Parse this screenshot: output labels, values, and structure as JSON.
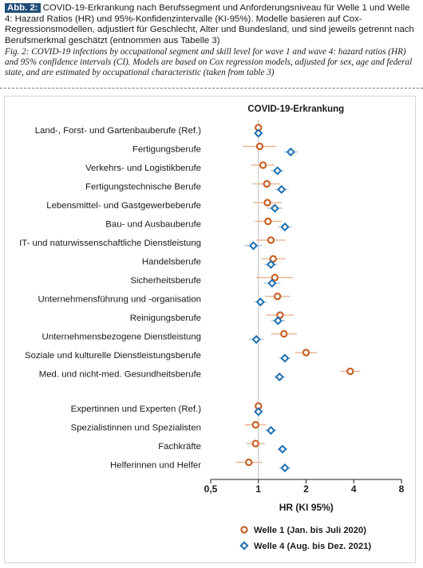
{
  "caption": {
    "label": "Abb. 2:",
    "german": "COVID-19-Erkrankung nach Berufssegment und Anforderungsniveau für Welle 1 und Welle 4: Hazard Ratios (HR) und 95%-Konfidenzintervalle (KI-95%). Modelle basieren auf Cox-Regressionsmodellen, adjustiert für Geschlecht, Alter und Bundesland, und sind jeweils getrennt nach Berufsmerkmal geschätzt (entnommen aus Tabelle 3)",
    "english": "Fig. 2: COVID-19 infections by occupational segment and skill level for wave 1 and wave 4: hazard ratios (HR) and 95% confidence intervals (CI). Models are based on Cox regression models, adjusted for sex, age and federal state, and are estimated by occupational characteristic (taken from table 3)"
  },
  "chart_data": {
    "type": "scatter",
    "title": "COVID-19-Erkrankung",
    "xlabel": "HR (KI 95%)",
    "x_scale": "log2",
    "xlim": [
      0.5,
      8
    ],
    "x_ticks": [
      {
        "value": 0.5,
        "label": "0,5"
      },
      {
        "value": 1,
        "label": "1"
      },
      {
        "value": 2,
        "label": "2"
      },
      {
        "value": 4,
        "label": "4"
      },
      {
        "value": 8,
        "label": "8"
      }
    ],
    "reference_line": 1,
    "series": [
      {
        "name": "Welle 1 (Jan. bis Juli 2020)",
        "marker": "circle",
        "color": "#c8622a"
      },
      {
        "name": "Welle 4 (Aug. bis Dez. 2021)",
        "marker": "diamond",
        "color": "#1e6fb0"
      }
    ],
    "groups": [
      {
        "rows": [
          {
            "label": "Land-, Forst- und Gartenbauberufe (Ref.)",
            "w1": {
              "hr": 1.0,
              "lo": 1.0,
              "hi": 1.0
            },
            "w4": {
              "hr": 1.0,
              "lo": 1.0,
              "hi": 1.0
            }
          },
          {
            "label": "Fertigungsberufe",
            "w1": {
              "hr": 1.02,
              "lo": 0.8,
              "hi": 1.3
            },
            "w4": {
              "hr": 1.6,
              "lo": 1.45,
              "hi": 1.77
            }
          },
          {
            "label": "Verkehrs- und Logistikberufe",
            "w1": {
              "hr": 1.07,
              "lo": 0.9,
              "hi": 1.27
            },
            "w4": {
              "hr": 1.32,
              "lo": 1.2,
              "hi": 1.45
            }
          },
          {
            "label": "Fertigungstechnische Berufe",
            "w1": {
              "hr": 1.13,
              "lo": 0.92,
              "hi": 1.38
            },
            "w4": {
              "hr": 1.4,
              "lo": 1.27,
              "hi": 1.55
            }
          },
          {
            "label": "Lebensmittel- und Gastgewerbeberufe",
            "w1": {
              "hr": 1.14,
              "lo": 0.93,
              "hi": 1.4
            },
            "w4": {
              "hr": 1.27,
              "lo": 1.14,
              "hi": 1.42
            }
          },
          {
            "label": "Bau- und Ausbauberufe",
            "w1": {
              "hr": 1.15,
              "lo": 0.95,
              "hi": 1.4
            },
            "w4": {
              "hr": 1.47,
              "lo": 1.33,
              "hi": 1.63
            }
          },
          {
            "label": "IT- und naturwissenschaftliche Dienstleistung",
            "w1": {
              "hr": 1.2,
              "lo": 0.97,
              "hi": 1.48
            },
            "w4": {
              "hr": 0.93,
              "lo": 0.82,
              "hi": 1.05
            }
          },
          {
            "label": "Handelsberufe",
            "w1": {
              "hr": 1.24,
              "lo": 1.04,
              "hi": 1.48
            },
            "w4": {
              "hr": 1.2,
              "lo": 1.09,
              "hi": 1.32
            }
          },
          {
            "label": "Sicherheitsberufe",
            "w1": {
              "hr": 1.27,
              "lo": 0.97,
              "hi": 1.65
            },
            "w4": {
              "hr": 1.22,
              "lo": 1.08,
              "hi": 1.38
            }
          },
          {
            "label": "Unternehmensführung und -organisation",
            "w1": {
              "hr": 1.32,
              "lo": 1.1,
              "hi": 1.58
            },
            "w4": {
              "hr": 1.03,
              "lo": 0.94,
              "hi": 1.13
            }
          },
          {
            "label": "Reinigungsberufe",
            "w1": {
              "hr": 1.37,
              "lo": 1.12,
              "hi": 1.67
            },
            "w4": {
              "hr": 1.33,
              "lo": 1.2,
              "hi": 1.48
            }
          },
          {
            "label": "Unternehmensbezogene Dienstleistung",
            "w1": {
              "hr": 1.45,
              "lo": 1.2,
              "hi": 1.75
            },
            "w4": {
              "hr": 0.97,
              "lo": 0.87,
              "hi": 1.08
            }
          },
          {
            "label": "Soziale und kulturelle Dienstleistungsberufe",
            "w1": {
              "hr": 2.0,
              "lo": 1.7,
              "hi": 2.35
            },
            "w4": {
              "hr": 1.47,
              "lo": 1.35,
              "hi": 1.6
            }
          },
          {
            "label": "Med. und nicht-med. Gesundheitsberufe",
            "w1": {
              "hr": 3.8,
              "lo": 3.3,
              "hi": 4.4
            },
            "w4": {
              "hr": 1.36,
              "lo": 1.25,
              "hi": 1.48
            }
          }
        ]
      },
      {
        "rows": [
          {
            "label": "Expertinnen und Experten (Ref.)",
            "w1": {
              "hr": 1.0,
              "lo": 1.0,
              "hi": 1.0
            },
            "w4": {
              "hr": 1.0,
              "lo": 1.0,
              "hi": 1.0
            }
          },
          {
            "label": "Spezialistinnen und Spezialisten",
            "w1": {
              "hr": 0.96,
              "lo": 0.82,
              "hi": 1.12
            },
            "w4": {
              "hr": 1.2,
              "lo": 1.1,
              "hi": 1.3
            }
          },
          {
            "label": "Fachkräfte",
            "w1": {
              "hr": 0.96,
              "lo": 0.84,
              "hi": 1.1
            },
            "w4": {
              "hr": 1.42,
              "lo": 1.32,
              "hi": 1.53
            }
          },
          {
            "label": "Helferinnen und Helfer",
            "w1": {
              "hr": 0.87,
              "lo": 0.72,
              "hi": 1.05
            },
            "w4": {
              "hr": 1.47,
              "lo": 1.35,
              "hi": 1.6
            }
          }
        ]
      }
    ],
    "legend_position": "bottom-center"
  }
}
